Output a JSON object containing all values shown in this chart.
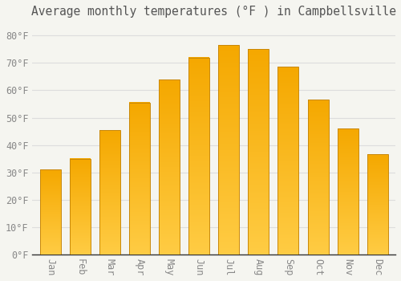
{
  "title": "Average monthly temperatures (°F ) in Campbellsville",
  "months": [
    "Jan",
    "Feb",
    "Mar",
    "Apr",
    "May",
    "Jun",
    "Jul",
    "Aug",
    "Sep",
    "Oct",
    "Nov",
    "Dec"
  ],
  "values": [
    31,
    35,
    45.5,
    55.5,
    64,
    72,
    76.5,
    75,
    68.5,
    56.5,
    46,
    36.5
  ],
  "bar_color_top": "#F5A800",
  "bar_color_bottom": "#FFCC44",
  "bar_edge_color": "#C8880A",
  "background_color": "#F5F5F0",
  "grid_color": "#DDDDDD",
  "title_color": "#555555",
  "tick_color": "#888888",
  "axis_color": "#333333",
  "ylim": [
    0,
    85
  ],
  "yticks": [
    0,
    10,
    20,
    30,
    40,
    50,
    60,
    70,
    80
  ],
  "title_fontsize": 10.5,
  "tick_fontsize": 8.5,
  "font_family": "monospace",
  "bar_width": 0.7
}
